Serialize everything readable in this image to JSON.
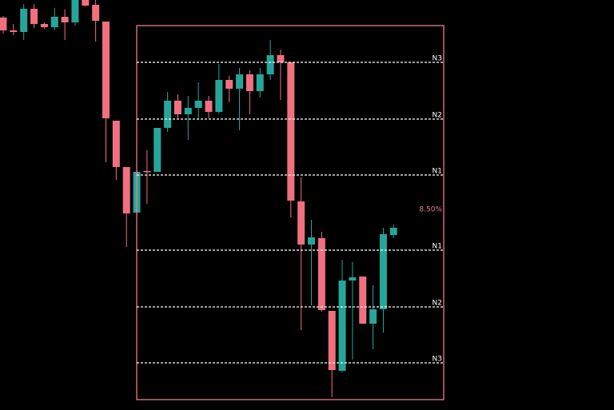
{
  "chart_data": {
    "type": "candlestick",
    "up_color": "#26a69a",
    "down_color": "#f0707f",
    "ylim": [
      0,
      513
    ],
    "open": [
      491,
      475,
      473,
      502,
      483,
      479,
      492,
      485,
      513,
      507,
      486,
      362,
      304,
      247,
      299,
      298,
      353,
      387,
      370,
      378,
      387,
      373,
      413,
      402,
      420,
      399,
      420,
      444,
      435,
      261,
      207,
      215,
      124,
      49,
      162,
      167,
      108,
      126,
      219
    ],
    "high": [
      493,
      483,
      508,
      508,
      485,
      503,
      501,
      513,
      513,
      513,
      486,
      362,
      304,
      300,
      325,
      353,
      398,
      395,
      393,
      410,
      393,
      433,
      418,
      428,
      425,
      428,
      463,
      451,
      435,
      291,
      238,
      223,
      124,
      188,
      185,
      167,
      156,
      228,
      232
    ],
    "low": [
      471,
      469,
      463,
      478,
      477,
      475,
      463,
      481,
      505,
      461,
      310,
      288,
      204,
      243,
      258,
      298,
      348,
      365,
      338,
      363,
      365,
      371,
      385,
      350,
      370,
      391,
      413,
      388,
      241,
      100,
      131,
      123,
      16,
      47,
      63,
      108,
      76,
      97,
      215
    ],
    "close": [
      475,
      473,
      502,
      483,
      479,
      492,
      485,
      513,
      506,
      487,
      365,
      304,
      246,
      298,
      298,
      353,
      387,
      370,
      378,
      387,
      373,
      413,
      402,
      420,
      399,
      420,
      444,
      435,
      262,
      207,
      216,
      125,
      50,
      162,
      166,
      108,
      126,
      220,
      228
    ],
    "range": {
      "high": 481,
      "low": 13,
      "color": "#f07b8a"
    },
    "levels": [
      {
        "label": "N3",
        "value": 435
      },
      {
        "label": "N2",
        "value": 364
      },
      {
        "label": "N1",
        "value": 294
      },
      {
        "label": "N1",
        "value": 200
      },
      {
        "label": "N2",
        "value": 129
      },
      {
        "label": "N3",
        "value": 59
      }
    ],
    "annotation": {
      "label": "8.50%",
      "value": 251,
      "color": "#f07b8a"
    }
  }
}
